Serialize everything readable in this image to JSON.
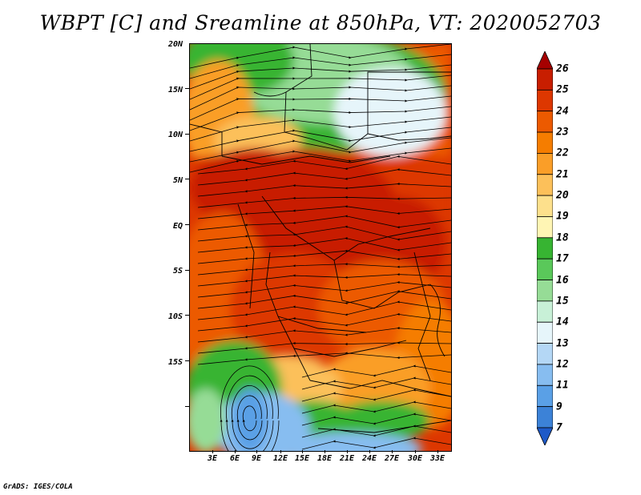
{
  "title": "WBPT [C] and Sreamline at 850hPa, VT: 2020052703",
  "credit": "GrADS: IGES/COLA",
  "map": {
    "variable": "WBPT",
    "units": "C",
    "level": "850hPa",
    "valid_time": "2020052703",
    "lat_labels": [
      "20N",
      "15N",
      "10N",
      "5N",
      "EQ",
      "5S",
      "10S",
      "15S"
    ],
    "lon_labels": [
      "3E",
      "6E",
      "9E",
      "12E",
      "15E",
      "18E",
      "21E",
      "24E",
      "27E",
      "30E",
      "33E"
    ]
  },
  "colorbar": {
    "labels": [
      "26",
      "25",
      "24",
      "23",
      "22",
      "21",
      "20",
      "19",
      "18",
      "17",
      "16",
      "15",
      "14",
      "13",
      "12",
      "11",
      "9",
      "7"
    ],
    "colors": [
      "#a50000",
      "#c81e00",
      "#dd3700",
      "#ec5a00",
      "#f57d00",
      "#fa9e28",
      "#fcc05a",
      "#fde08c",
      "#fff5b4",
      "#37b432",
      "#5ac85a",
      "#96dc96",
      "#c8f0d7",
      "#e6f5fa",
      "#b4d7f5",
      "#87bdf0",
      "#5aa0e6",
      "#3c82d7",
      "#1e5ac8"
    ]
  },
  "colors": {
    "deep_red": "#c81e00",
    "red": "#dd3700",
    "orange_red": "#ec5a00",
    "orange": "#f57d00",
    "light_orange": "#fa9e28",
    "tan": "#fcc05a",
    "green": "#37b432",
    "light_green": "#96dc96",
    "pale_cyan": "#e6f5fa",
    "light_blue": "#87bdf0",
    "blue": "#5aa0e6"
  }
}
